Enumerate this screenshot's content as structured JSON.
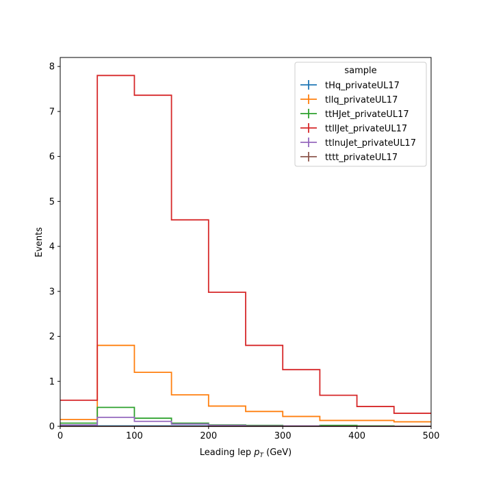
{
  "chart_data": {
    "type": "step",
    "xlabel_main": "Leading lep ",
    "xlabel_var": "p",
    "xlabel_sub": "T",
    "xlabel_unit": " (GeV)",
    "ylabel": "Events",
    "xlim": [
      0,
      500
    ],
    "ylim": [
      0,
      8.2
    ],
    "xticks": [
      0,
      100,
      200,
      300,
      400,
      500
    ],
    "yticks": [
      0,
      1,
      2,
      3,
      4,
      5,
      6,
      7,
      8
    ],
    "bin_edges": [
      0,
      50,
      100,
      150,
      200,
      250,
      300,
      350,
      400,
      450,
      500
    ],
    "legend_title": "sample",
    "legend_position": "upper right",
    "series": [
      {
        "name": "tHq_privateUL17",
        "color": "#1f77b4",
        "values": [
          0.01,
          0.01,
          0.01,
          0.01,
          0.0,
          0.0,
          0.0,
          0.0,
          0.0,
          0.0
        ]
      },
      {
        "name": "tllq_privateUL17",
        "color": "#ff7f0e",
        "values": [
          0.15,
          1.8,
          1.2,
          0.7,
          0.45,
          0.33,
          0.22,
          0.13,
          0.13,
          0.1
        ]
      },
      {
        "name": "ttHJet_privateUL17",
        "color": "#2ca02c",
        "values": [
          0.07,
          0.42,
          0.18,
          0.07,
          0.03,
          0.02,
          0.01,
          0.02,
          0.01,
          0.0
        ]
      },
      {
        "name": "ttllJet_privateUL17",
        "color": "#d62728",
        "values": [
          0.58,
          7.8,
          7.36,
          4.59,
          2.98,
          1.8,
          1.26,
          0.69,
          0.44,
          0.29
        ]
      },
      {
        "name": "ttlnuJet_privateUL17",
        "color": "#9467bd",
        "values": [
          0.03,
          0.2,
          0.11,
          0.05,
          0.02,
          0.01,
          0.01,
          0.0,
          0.0,
          0.0
        ]
      },
      {
        "name": "tttt_privateUL17",
        "color": "#8c564b",
        "values": [
          0.0,
          0.0,
          0.0,
          0.0,
          0.0,
          0.0,
          0.0,
          0.0,
          0.0,
          0.0
        ]
      }
    ]
  }
}
